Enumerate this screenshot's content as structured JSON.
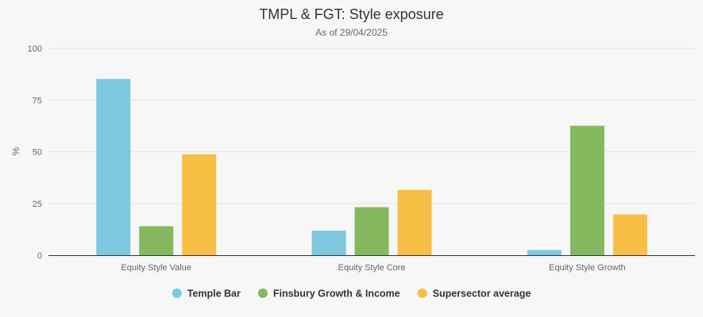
{
  "chart_data": {
    "type": "bar",
    "title": "TMPL & FGT: Style exposure",
    "subtitle": "As of 29/04/2025",
    "xlabel": "",
    "ylabel": "%",
    "ylim": [
      0,
      100
    ],
    "yticks": [
      "0",
      "25",
      "50",
      "75",
      "100"
    ],
    "categories": [
      "Equity Style Value",
      "Equity Style Core",
      "Equity Style Growth"
    ],
    "series": [
      {
        "name": "Temple Bar",
        "color": "#7ec8df",
        "values": [
          85.2,
          11.9,
          2.5
        ]
      },
      {
        "name": "Finsbury Growth & Income",
        "color": "#84b95f",
        "values": [
          14.0,
          23.2,
          62.6
        ]
      },
      {
        "name": "Supersector average",
        "color": "#f7bf45",
        "values": [
          48.8,
          31.6,
          19.7
        ]
      }
    ],
    "grid": true,
    "legend": "bottom-center"
  }
}
